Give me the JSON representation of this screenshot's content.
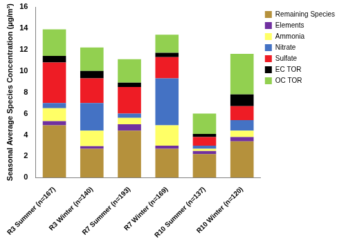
{
  "chart_data": {
    "type": "bar",
    "stacked": true,
    "grid": false,
    "legend": "right",
    "y_label": "Seasonal Average Species Concentration (μg/m³)",
    "categories": [
      "R3 Summer (n=167)",
      "R3 Winter (n=140)",
      "R7 Summer (n=193)",
      "R7 Winter (n=169)",
      "R10 Summer (n=137)",
      "R10 Winter (n=120)"
    ],
    "series": [
      {
        "name": "Remaining Species",
        "color": "#b5913c",
        "values": [
          4.9,
          2.7,
          4.4,
          2.7,
          2.2,
          3.4
        ]
      },
      {
        "name": "Elements",
        "color": "#7030a0",
        "values": [
          0.4,
          0.25,
          0.6,
          0.3,
          0.3,
          0.4
        ]
      },
      {
        "name": "Ammonia",
        "color": "#ffff66",
        "values": [
          1.2,
          1.45,
          0.6,
          1.9,
          0.2,
          0.6
        ]
      },
      {
        "name": "Nitrate",
        "color": "#4472c4",
        "values": [
          0.5,
          2.6,
          0.4,
          4.4,
          0.3,
          1.0
        ]
      },
      {
        "name": "Sulfate",
        "color": "#ee1c25",
        "values": [
          3.8,
          2.3,
          2.5,
          2.0,
          0.8,
          1.3
        ]
      },
      {
        "name": "EC TOR",
        "color": "#000000",
        "values": [
          0.6,
          0.7,
          0.4,
          0.4,
          0.3,
          1.1
        ]
      },
      {
        "name": "OC TOR",
        "color": "#92d050",
        "values": [
          2.5,
          2.2,
          2.2,
          1.7,
          1.9,
          3.8
        ]
      }
    ],
    "ylim": [
      0,
      16
    ],
    "yticks": [
      0,
      2,
      4,
      6,
      8,
      10,
      12,
      14,
      16
    ]
  }
}
